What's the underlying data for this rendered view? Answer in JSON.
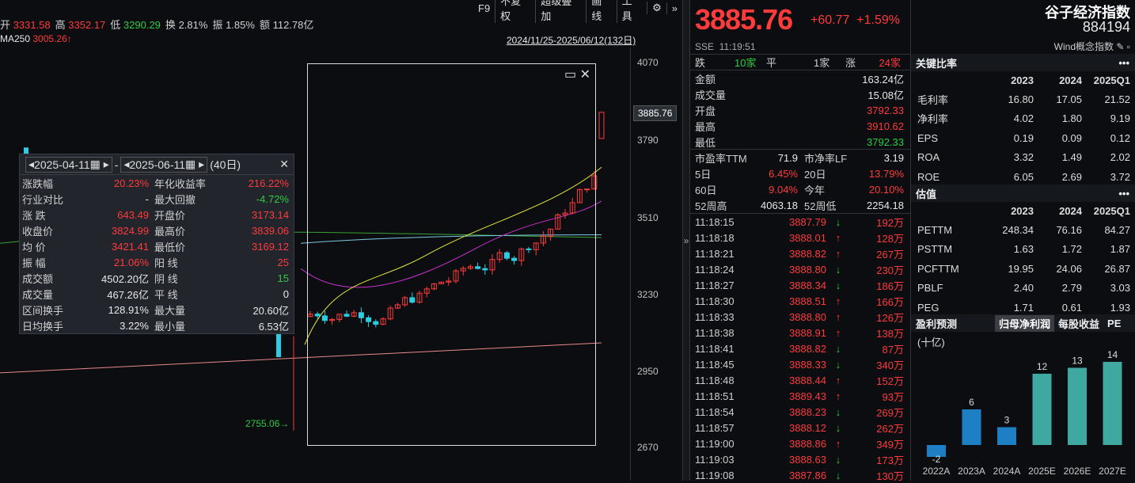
{
  "quote_bar": {
    "open_label": "开",
    "open": "3331.58",
    "high_label": "高",
    "high": "3352.17",
    "low_label": "低",
    "low": "3290.29",
    "turnover_label": "换",
    "turnover": "2.81%",
    "amp_label": "振",
    "amp": "1.85%",
    "amount_label": "额",
    "amount": "112.78亿"
  },
  "toolbar": [
    "F9",
    "不复权",
    "超级叠加",
    "画线",
    "工具"
  ],
  "ma250": {
    "label": "MA250",
    "value": "3005.26↑"
  },
  "date_range": "2024/11/25-2025/06/12(132日)",
  "axis_labels": [
    "4070",
    "3790",
    "3510",
    "3230",
    "2950",
    "2670"
  ],
  "current_price_tag": "3885.76",
  "low_marker": "2755.06",
  "popup": {
    "start": "2025-04-11",
    "end": "2025-06-11",
    "dash": "-",
    "days": "(40日)",
    "rows": [
      [
        "涨跌幅",
        "20.23%",
        "年化收益率",
        "216.22%"
      ],
      [
        "行业对比",
        "-",
        "最大回撤",
        "-4.72%"
      ],
      [
        "涨 跌",
        "643.49",
        "开盘价",
        "3173.14"
      ],
      [
        "收盘价",
        "3824.99",
        "最高价",
        "3839.06"
      ],
      [
        "均 价",
        "3421.41",
        "最低价",
        "3169.12"
      ],
      [
        "振 幅",
        "21.06%",
        "阳 线",
        "25"
      ],
      [
        "成交额",
        "4502.20亿",
        "阴 线",
        "15"
      ],
      [
        "成交量",
        "467.26亿",
        "平 线",
        "0"
      ],
      [
        "区间换手",
        "128.91%",
        "最大量",
        "20.60亿"
      ],
      [
        "日均换手",
        "3.22%",
        "最小量",
        "6.53亿"
      ]
    ]
  },
  "price": {
    "last": "3885.76",
    "change": "+60.77",
    "pct": "+1.59%",
    "exchange": "SSE",
    "time": "11:19:51"
  },
  "breadth": {
    "down_label": "跌",
    "down": "10家",
    "flat_label": "平",
    "flat": "1家",
    "up_label": "涨",
    "up": "24家"
  },
  "stats": [
    [
      "金额",
      "163.24亿"
    ],
    [
      "成交量",
      "15.08亿"
    ],
    [
      "开盘",
      "3792.33"
    ],
    [
      "最高",
      "3910.62"
    ],
    [
      "最低",
      "3792.33"
    ]
  ],
  "valuation_row": [
    [
      "市盈率TTM",
      "71.9",
      "市净率LF",
      "3.19"
    ],
    [
      "5日",
      "6.45%",
      "20日",
      "13.79%"
    ],
    [
      "60日",
      "9.04%",
      "今年",
      "20.10%"
    ],
    [
      "52周高",
      "4063.18",
      "52周低",
      "2254.18"
    ]
  ],
  "ticks": [
    [
      "11:18:15",
      "3887.79",
      "↓",
      "192万"
    ],
    [
      "11:18:18",
      "3888.01",
      "↑",
      "128万"
    ],
    [
      "11:18:21",
      "3888.82",
      "↑",
      "267万"
    ],
    [
      "11:18:24",
      "3888.80",
      "↓",
      "230万"
    ],
    [
      "11:18:27",
      "3888.34",
      "↓",
      "186万"
    ],
    [
      "11:18:30",
      "3888.51",
      "↑",
      "166万"
    ],
    [
      "11:18:33",
      "3888.80",
      "↑",
      "126万"
    ],
    [
      "11:18:38",
      "3888.91",
      "↑",
      "138万"
    ],
    [
      "11:18:41",
      "3888.82",
      "↓",
      "87万"
    ],
    [
      "11:18:45",
      "3888.33",
      "↓",
      "340万"
    ],
    [
      "11:18:48",
      "3888.44",
      "↑",
      "152万"
    ],
    [
      "11:18:51",
      "3889.43",
      "↑",
      "93万"
    ],
    [
      "11:18:54",
      "3888.23",
      "↓",
      "269万"
    ],
    [
      "11:18:57",
      "3888.12",
      "↓",
      "262万"
    ],
    [
      "11:19:00",
      "3888.86",
      "↑",
      "349万"
    ],
    [
      "11:19:03",
      "3888.63",
      "↓",
      "173万"
    ],
    [
      "11:19:08",
      "3887.86",
      "↓",
      "130万"
    ]
  ],
  "index": {
    "name": "谷子经济指数",
    "code": "884194",
    "category": "Wind概念指数"
  },
  "ratios": {
    "title": "关键比率",
    "years": [
      "2023",
      "2024",
      "2025Q1"
    ],
    "rows": [
      [
        "毛利率",
        "16.80",
        "17.05",
        "21.52"
      ],
      [
        "净利率",
        "4.02",
        "1.80",
        "9.19"
      ],
      [
        "EPS",
        "0.19",
        "0.09",
        "0.12"
      ],
      [
        "ROA",
        "3.32",
        "1.49",
        "2.02"
      ],
      [
        "ROE",
        "6.05",
        "2.69",
        "3.72"
      ]
    ]
  },
  "valuation": {
    "title": "估值",
    "years": [
      "2023",
      "2024",
      "2025Q1"
    ],
    "rows": [
      [
        "PETTM",
        "248.34",
        "76.16",
        "84.27"
      ],
      [
        "PSTTM",
        "1.63",
        "1.72",
        "1.87"
      ],
      [
        "PCFTTM",
        "19.95",
        "24.06",
        "26.87"
      ],
      [
        "PBLF",
        "2.40",
        "2.79",
        "3.03"
      ],
      [
        "PEG",
        "1.71",
        "0.61",
        "1.93"
      ]
    ]
  },
  "forecast": {
    "title": "盈利预测",
    "tabs": [
      "归母净利润",
      "每股收益",
      "PE"
    ],
    "unit": "(十亿)"
  },
  "chart_data": {
    "type": "bar",
    "categories": [
      "2022A",
      "2023A",
      "2024A",
      "2025E",
      "2026E",
      "2027E"
    ],
    "values": [
      -2,
      6,
      3,
      12,
      13,
      14
    ],
    "ylim": [
      -3,
      15
    ]
  },
  "colors": {
    "up": "#ff3b3b",
    "down": "#2ecc40",
    "bar_actual": "#1f7fc4",
    "bar_est": "#3fa8a0"
  }
}
